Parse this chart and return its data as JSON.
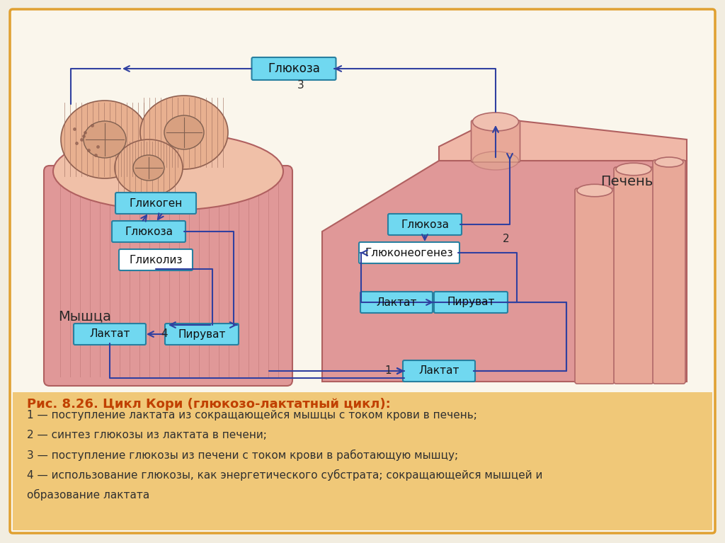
{
  "bg_outer": "#f2ede0",
  "bg_diagram": "#faf6ec",
  "bg_caption": "#f0c878",
  "muscle_fill": "#e8a0a0",
  "muscle_fill2": "#f0c0b0",
  "muscle_border": "#b06060",
  "liver_fill": "#e8a0a0",
  "liver_fill2": "#d89090",
  "liver_border": "#b06060",
  "cylinder_fill": "#e8b0a0",
  "cylinder_border": "#b06868",
  "box_cyan": "#70d8f0",
  "box_cyan_border": "#2880a0",
  "box_white": "#ffffff",
  "box_white_border": "#2880a0",
  "box_rect_border": "#5060a0",
  "arrow_color": "#3040a0",
  "text_dark": "#202020",
  "text_myshca": "#303030",
  "caption_title_color": "#c04000",
  "caption_text_color": "#303030",
  "outer_border": "#e0a030",
  "title": "Рис. 8.26. Цикл Кори (глюкозо-лактатный цикл):",
  "caption_lines": [
    "1 — поступление лактата из сокращающейся мышцы с током крови в печень;",
    "2 — синтез глюкозы из лактата в печени;",
    "3 — поступление глюкозы из печени с током крови в работающую мышцу;",
    "4 — использование глюкозы, как энергетического субстрата; сокращающейся мышцей и",
    "образование лактата"
  ],
  "lbl_glikogen": "Гликоген",
  "lbl_glyukoza": "Глюкоза",
  "lbl_glikoliz": "Гликолиз",
  "lbl_laktat": "Лактат",
  "lbl_piruvat": "Пируват",
  "lbl_myshca": "Мышца",
  "lbl_pechen": "Печень",
  "lbl_glyukoneogenez": "Глюконеогенез"
}
